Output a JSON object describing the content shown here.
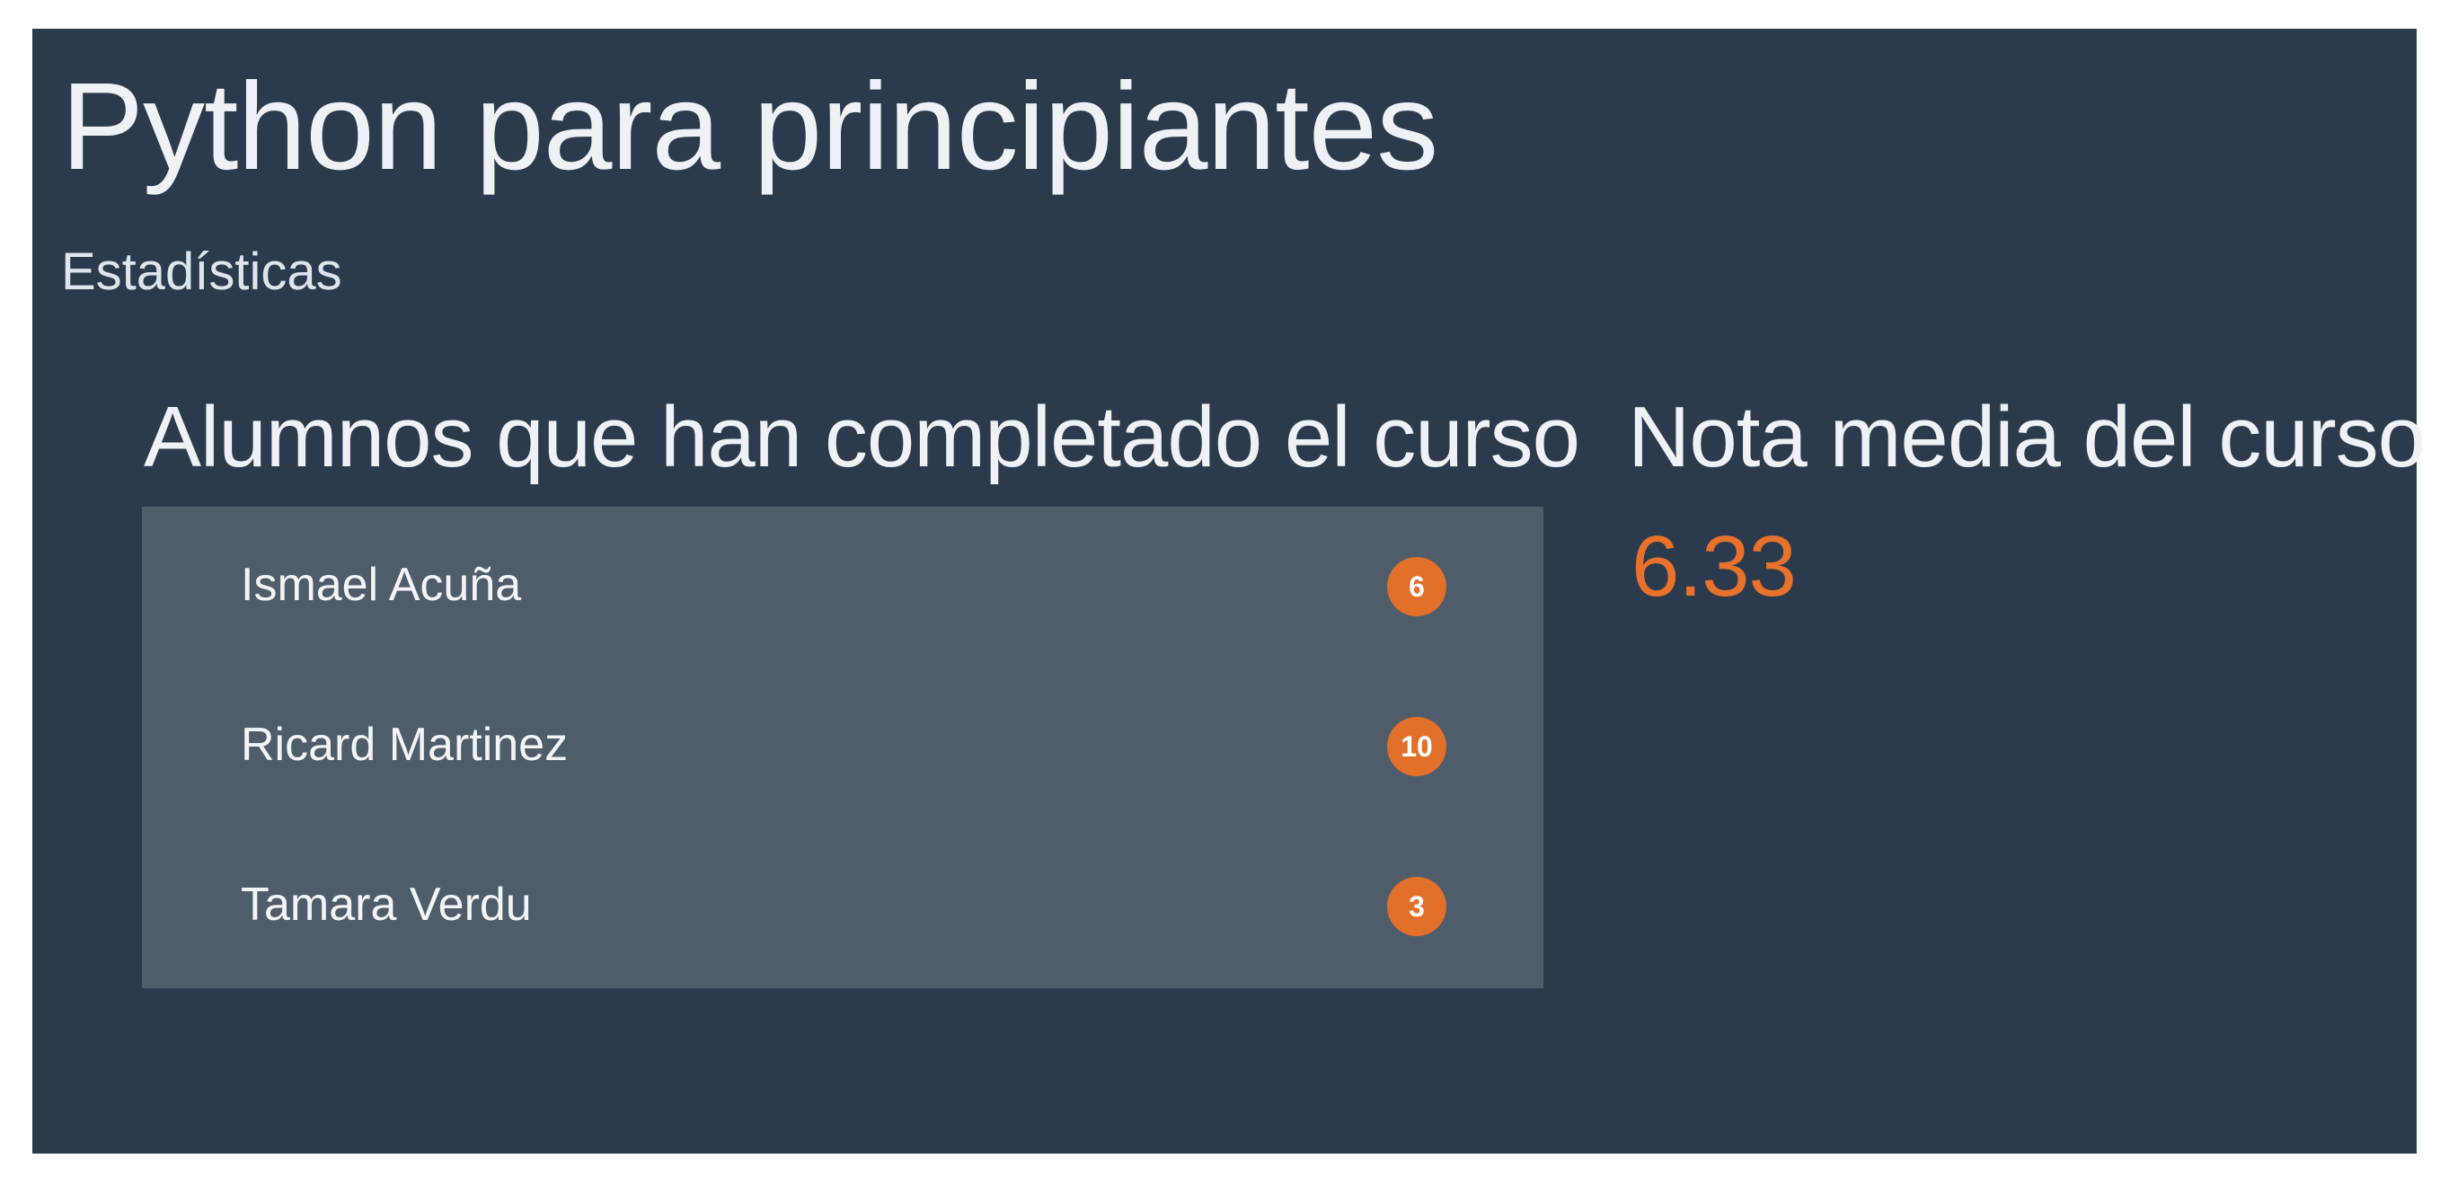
{
  "course": {
    "title": "Python para principiantes",
    "subtitle": "Estadísticas"
  },
  "completed": {
    "heading": "Alumnos que han completado el curso",
    "students": [
      {
        "name": "Ismael Acuña",
        "score": "6"
      },
      {
        "name": "Ricard Martinez",
        "score": "10"
      },
      {
        "name": "Tamara Verdu",
        "score": "3"
      }
    ]
  },
  "average": {
    "heading": "Nota media del curso",
    "value": "6.33"
  },
  "colors": {
    "panel_background": "#2b3b4d",
    "list_background": "#4f5d6b",
    "accent": "#e0702a"
  }
}
